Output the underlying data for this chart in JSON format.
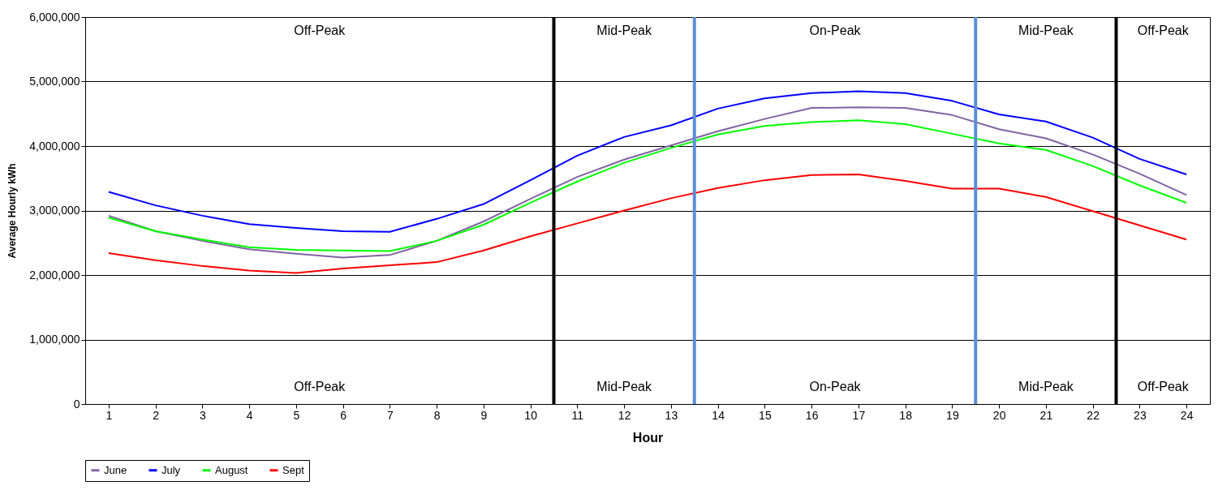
{
  "chart_data": {
    "type": "line",
    "xlabel": "Hour",
    "ylabel": "Average Hourly kWh",
    "x": [
      1,
      2,
      3,
      4,
      5,
      6,
      7,
      8,
      9,
      10,
      11,
      12,
      13,
      14,
      15,
      16,
      17,
      18,
      19,
      20,
      21,
      22,
      23,
      24
    ],
    "xlim": [
      0.5,
      24.5
    ],
    "xticks": [
      1,
      2,
      3,
      4,
      5,
      6,
      7,
      8,
      9,
      10,
      11,
      12,
      13,
      14,
      15,
      16,
      17,
      18,
      19,
      20,
      21,
      22,
      23,
      24
    ],
    "ylim": [
      0,
      6000000
    ],
    "yticks": [
      0,
      {
        "value": 1000000,
        "label": "1,000,000"
      },
      {
        "value": 2000000,
        "label": "2,000,000"
      },
      {
        "value": 3000000,
        "label": "3,000,000"
      },
      {
        "value": 4000000,
        "label": "4,000,000"
      },
      {
        "value": 5000000,
        "label": "5,000,000"
      },
      {
        "value": 6000000,
        "label": "6,000,000"
      }
    ],
    "grid": "y",
    "legend": "bottom",
    "marker": "none",
    "line_style": "solid",
    "series": [
      {
        "name": "June",
        "color": "#8064a2",
        "values": [
          2920000,
          2680000,
          2530000,
          2400000,
          2330000,
          2270000,
          2310000,
          2530000,
          2830000,
          3180000,
          3520000,
          3790000,
          4010000,
          4230000,
          4420000,
          4590000,
          4600000,
          4590000,
          4480000,
          4260000,
          4120000,
          3870000,
          3570000,
          3240000
        ]
      },
      {
        "name": "July",
        "color": "#0000ff",
        "values": [
          3290000,
          3080000,
          2920000,
          2790000,
          2730000,
          2680000,
          2670000,
          2870000,
          3100000,
          3470000,
          3850000,
          4140000,
          4320000,
          4580000,
          4740000,
          4820000,
          4850000,
          4820000,
          4700000,
          4490000,
          4380000,
          4130000,
          3800000,
          3560000
        ]
      },
      {
        "name": "August",
        "color": "#00ff00",
        "values": [
          2890000,
          2680000,
          2550000,
          2430000,
          2390000,
          2380000,
          2370000,
          2530000,
          2780000,
          3120000,
          3450000,
          3740000,
          3970000,
          4180000,
          4310000,
          4370000,
          4400000,
          4340000,
          4190000,
          4040000,
          3940000,
          3690000,
          3390000,
          3120000
        ]
      },
      {
        "name": "Sept",
        "color": "#ff0000",
        "values": [
          2340000,
          2230000,
          2140000,
          2070000,
          2030000,
          2100000,
          2150000,
          2200000,
          2380000,
          2600000,
          2800000,
          3000000,
          3190000,
          3350000,
          3470000,
          3550000,
          3560000,
          3460000,
          3340000,
          3340000,
          3210000,
          2990000,
          2770000,
          2550000
        ]
      }
    ],
    "ref_lines": [
      {
        "axis": "x",
        "value": 10.5,
        "color": "#000000"
      },
      {
        "axis": "x",
        "value": 13.5,
        "color": "#5b8fd6"
      },
      {
        "axis": "x",
        "value": 19.5,
        "color": "#5b8fd6"
      },
      {
        "axis": "x",
        "value": 22.5,
        "color": "#000000"
      }
    ],
    "annotations": [
      "Off-Peak",
      "Mid-Peak",
      "On-Peak",
      "Mid-Peak",
      "Off-Peak",
      "Off-Peak",
      "Mid-Peak",
      "On-Peak",
      "Mid-Peak",
      "Off-Peak"
    ]
  }
}
